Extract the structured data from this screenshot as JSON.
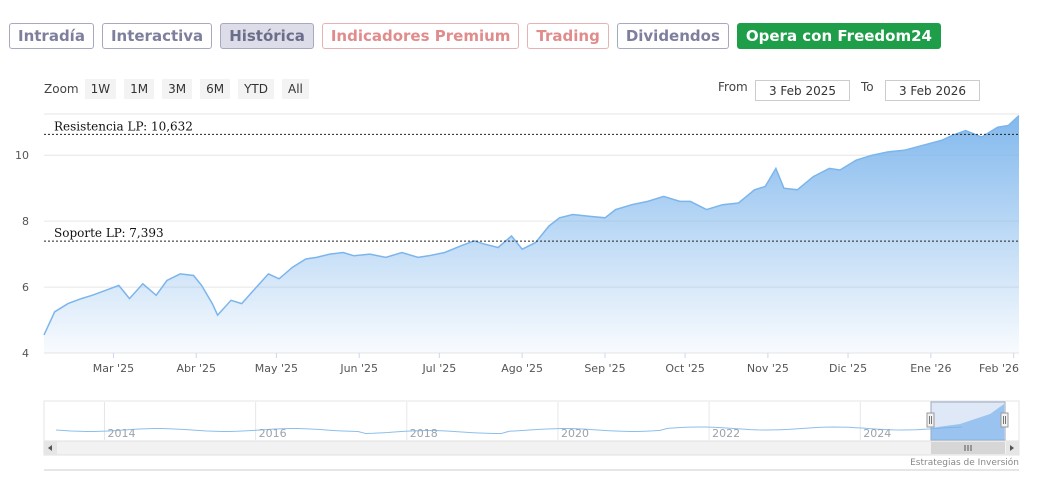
{
  "tabs": [
    {
      "label": "Intradía",
      "style": "default"
    },
    {
      "label": "Interactiva",
      "style": "default"
    },
    {
      "label": "Histórica",
      "style": "active"
    },
    {
      "label": "Indicadores Premium",
      "style": "premium"
    },
    {
      "label": "Trading",
      "style": "premium"
    },
    {
      "label": "Dividendos",
      "style": "default"
    },
    {
      "label": "Opera con Freedom24",
      "style": "green"
    }
  ],
  "zoom": {
    "label": "Zoom",
    "options": [
      "1W",
      "1M",
      "3M",
      "6M",
      "YTD",
      "All"
    ]
  },
  "range": {
    "from_label": "From",
    "from_value": "3 Feb 2025",
    "to_label": "To",
    "to_value": "3 Feb 2026"
  },
  "credit": "Estrategias de Inversión",
  "colors": {
    "line": "#7cb5ec",
    "fill_top": "#7cb5ec",
    "green_button": "#1e9e49",
    "tab_border": "#a7a9bd"
  },
  "chart_data": {
    "type": "area",
    "x_axis_labels": [
      "Mar '25",
      "Abr '25",
      "May '25",
      "Jun '25",
      "Jul '25",
      "Ago '25",
      "Sep '25",
      "Oct '25",
      "Nov '25",
      "Dic '25",
      "Ene '26",
      "Feb '26"
    ],
    "y_ticks": [
      4,
      6,
      8,
      10
    ],
    "ylim": [
      4,
      11.25
    ],
    "grid": true,
    "levels": [
      {
        "label": "Resistencia LP: 10,632",
        "value": 10.632
      },
      {
        "label": "Soporte LP: 7,393",
        "value": 7.393
      }
    ],
    "series": [
      {
        "x": [
          "2025-02-03",
          "2025-02-07",
          "2025-02-12",
          "2025-02-17",
          "2025-02-21",
          "2025-02-26",
          "2025-03-03",
          "2025-03-07",
          "2025-03-12",
          "2025-03-17",
          "2025-03-21",
          "2025-03-26",
          "2025-03-31",
          "2025-04-03",
          "2025-04-07",
          "2025-04-09",
          "2025-04-14",
          "2025-04-18",
          "2025-04-23",
          "2025-04-28",
          "2025-05-02",
          "2025-05-07",
          "2025-05-12",
          "2025-05-16",
          "2025-05-21",
          "2025-05-26",
          "2025-05-30",
          "2025-06-05",
          "2025-06-11",
          "2025-06-17",
          "2025-06-23",
          "2025-06-27",
          "2025-07-03",
          "2025-07-09",
          "2025-07-14",
          "2025-07-18",
          "2025-07-23",
          "2025-07-28",
          "2025-08-01",
          "2025-08-06",
          "2025-08-11",
          "2025-08-15",
          "2025-08-20",
          "2025-08-26",
          "2025-09-01",
          "2025-09-05",
          "2025-09-11",
          "2025-09-17",
          "2025-09-23",
          "2025-09-29",
          "2025-10-03",
          "2025-10-09",
          "2025-10-15",
          "2025-10-21",
          "2025-10-27",
          "2025-10-31",
          "2025-11-04",
          "2025-11-07",
          "2025-11-12",
          "2025-11-18",
          "2025-11-24",
          "2025-11-28",
          "2025-12-04",
          "2025-12-10",
          "2025-12-16",
          "2025-12-22",
          "2025-12-29",
          "2026-01-05",
          "2026-01-09",
          "2026-01-14",
          "2026-01-20",
          "2026-01-26",
          "2026-01-30",
          "2026-02-03"
        ],
        "y": [
          4.55,
          5.25,
          5.5,
          5.65,
          5.75,
          5.9,
          6.05,
          5.65,
          6.1,
          5.75,
          6.2,
          6.4,
          6.35,
          6.05,
          5.5,
          5.15,
          5.6,
          5.5,
          5.95,
          6.4,
          6.25,
          6.6,
          6.85,
          6.9,
          7.0,
          7.05,
          6.95,
          7.0,
          6.9,
          7.05,
          6.9,
          6.95,
          7.05,
          7.25,
          7.4,
          7.3,
          7.2,
          7.55,
          7.15,
          7.35,
          7.85,
          8.1,
          8.2,
          8.15,
          8.1,
          8.35,
          8.5,
          8.6,
          8.75,
          8.6,
          8.6,
          8.35,
          8.5,
          8.55,
          8.95,
          9.05,
          9.6,
          9.0,
          8.95,
          9.35,
          9.6,
          9.55,
          9.85,
          10.0,
          10.1,
          10.15,
          10.3,
          10.45,
          10.6,
          10.75,
          10.55,
          10.85,
          10.9,
          11.2
        ]
      }
    ],
    "navigator": {
      "labels": [
        "2014",
        "2016",
        "2018",
        "2020",
        "2022",
        "2024"
      ]
    }
  }
}
